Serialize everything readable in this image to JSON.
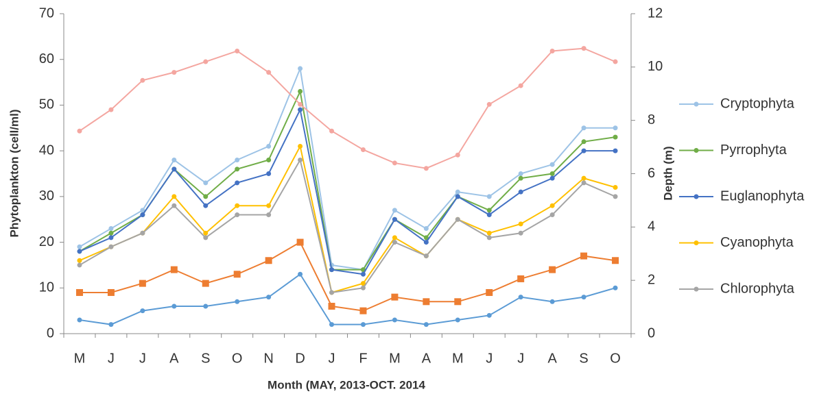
{
  "chart_data": {
    "type": "line",
    "xlabel": "Month (MAY, 2013-OCT. 2014",
    "ylabel": "Phytoplankton (cell/ml)",
    "y2label": "Depth (m)",
    "categories": [
      "M",
      "J",
      "J",
      "A",
      "S",
      "O",
      "N",
      "D",
      "J",
      "F",
      "M",
      "A",
      "M",
      "J",
      "J",
      "A",
      "S",
      "O"
    ],
    "ylim": [
      0,
      70
    ],
    "yticks": [
      0,
      10,
      20,
      30,
      40,
      50,
      60,
      70
    ],
    "y2lim": [
      0,
      12
    ],
    "y2ticks": [
      0,
      2,
      4,
      6,
      8,
      10,
      12
    ],
    "legend": "right",
    "series": [
      {
        "name": "Cryptophyta",
        "color": "#9dc3e6",
        "marker": "circle",
        "values": [
          19,
          23,
          27,
          38,
          33,
          38,
          41,
          58,
          15,
          14,
          27,
          23,
          31,
          30,
          35,
          37,
          45,
          45
        ]
      },
      {
        "name": "Pyrrophyta",
        "color": "#70ad47",
        "marker": "circle",
        "values": [
          18,
          22,
          26,
          36,
          30,
          36,
          38,
          53,
          14,
          14,
          25,
          21,
          30,
          27,
          34,
          35,
          42,
          43
        ]
      },
      {
        "name": "Euglanophyta",
        "color": "#4472c4",
        "marker": "circle",
        "values": [
          18,
          21,
          26,
          36,
          28,
          33,
          35,
          49,
          14,
          13,
          25,
          20,
          30,
          26,
          31,
          34,
          40,
          40
        ]
      },
      {
        "name": "Cyanophyta",
        "color": "#ffc000",
        "marker": "circle",
        "values": [
          16,
          19,
          22,
          30,
          22,
          28,
          28,
          41,
          9,
          11,
          21,
          17,
          25,
          22,
          24,
          28,
          34,
          32
        ]
      },
      {
        "name": "Chlorophyta",
        "color": "#a5a5a5",
        "marker": "circle",
        "values": [
          15,
          19,
          22,
          28,
          21,
          26,
          26,
          38,
          9,
          10,
          20,
          17,
          25,
          21,
          22,
          26,
          33,
          30
        ]
      },
      {
        "color": "#ed7d31",
        "marker": "square",
        "values": [
          9,
          9,
          11,
          14,
          11,
          13,
          16,
          20,
          6,
          5,
          8,
          7,
          7,
          9,
          12,
          14,
          17,
          16
        ]
      },
      {
        "color": "#5b9bd5",
        "marker": "circle",
        "values": [
          3,
          2,
          5,
          6,
          6,
          7,
          8,
          13,
          2,
          2,
          3,
          2,
          3,
          4,
          8,
          7,
          8,
          10
        ]
      },
      {
        "color": "#f4a6a0",
        "marker": "circle",
        "axis": "y2",
        "values": [
          7.6,
          8.4,
          9.5,
          9.8,
          10.2,
          10.6,
          9.8,
          8.6,
          7.6,
          6.9,
          6.4,
          6.2,
          6.7,
          8.6,
          9.3,
          10.6,
          10.7,
          10.2
        ]
      }
    ]
  }
}
